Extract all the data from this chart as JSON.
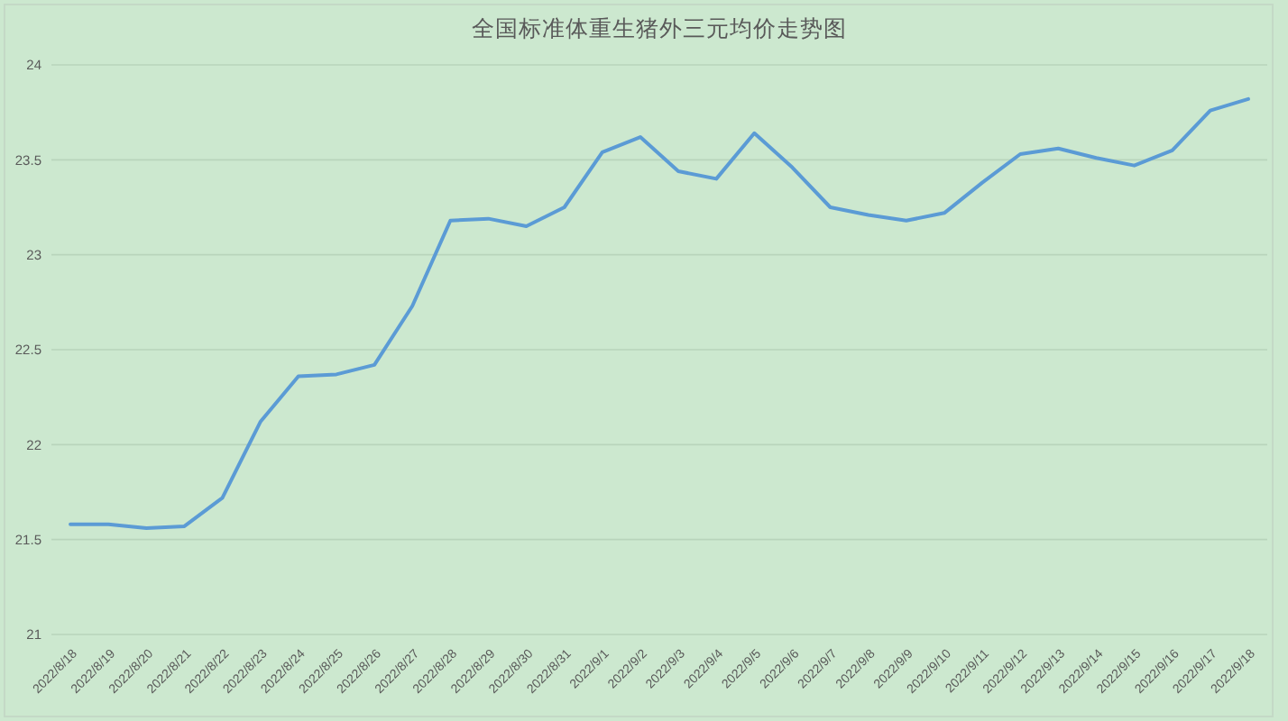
{
  "chart_data": {
    "type": "line",
    "title": "全国标准体重生猪外三元均价走势图",
    "categories": [
      "2022/8/18",
      "2022/8/19",
      "2022/8/20",
      "2022/8/21",
      "2022/8/22",
      "2022/8/23",
      "2022/8/24",
      "2022/8/25",
      "2022/8/26",
      "2022/8/27",
      "2022/8/28",
      "2022/8/29",
      "2022/8/30",
      "2022/8/31",
      "2022/9/1",
      "2022/9/2",
      "2022/9/3",
      "2022/9/4",
      "2022/9/5",
      "2022/9/6",
      "2022/9/7",
      "2022/9/8",
      "2022/9/9",
      "2022/9/10",
      "2022/9/11",
      "2022/9/12",
      "2022/9/13",
      "2022/9/14",
      "2022/9/15",
      "2022/9/16",
      "2022/9/17",
      "2022/9/18"
    ],
    "series": [
      {
        "color": "#5b9bd5",
        "values": [
          21.58,
          21.58,
          21.56,
          21.57,
          21.72,
          22.12,
          22.36,
          22.37,
          22.42,
          22.73,
          23.18,
          23.19,
          23.15,
          23.25,
          23.54,
          23.62,
          23.44,
          23.4,
          23.64,
          23.46,
          23.25,
          23.21,
          23.18,
          23.22,
          23.38,
          23.53,
          23.56,
          23.51,
          23.47,
          23.55,
          23.76,
          23.82
        ]
      }
    ],
    "ylim": [
      21,
      24
    ],
    "yticks": [
      21,
      21.5,
      22,
      22.5,
      23,
      23.5,
      24
    ],
    "grid": "y"
  }
}
